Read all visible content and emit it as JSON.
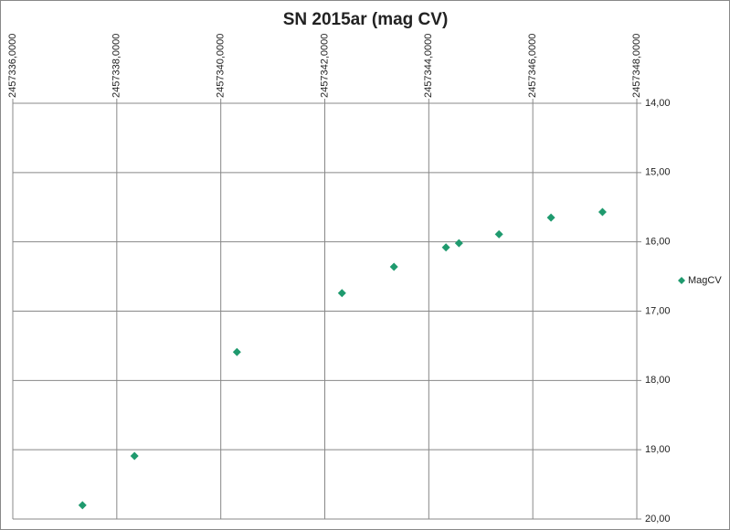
{
  "chart_data": {
    "type": "scatter",
    "title": "SN 2015ar (mag CV)",
    "series": [
      {
        "name": "MagCV",
        "color": "#1f9a6e",
        "x": [
          2457337.34,
          2457338.34,
          2457340.31,
          2457342.33,
          2457343.33,
          2457344.33,
          2457344.58,
          2457345.35,
          2457346.35,
          2457347.34
        ],
        "values": [
          19.8,
          19.09,
          17.59,
          16.74,
          16.36,
          16.08,
          16.02,
          15.89,
          15.65,
          15.57
        ]
      }
    ],
    "xlim": [
      2457336,
      2457348
    ],
    "xticks": [
      {
        "value": 2457336,
        "label": "2457336,0000"
      },
      {
        "value": 2457338,
        "label": "2457338,0000"
      },
      {
        "value": 2457340,
        "label": "2457340,0000"
      },
      {
        "value": 2457342,
        "label": "2457342,0000"
      },
      {
        "value": 2457344,
        "label": "2457344,0000"
      },
      {
        "value": 2457346,
        "label": "2457346,0000"
      },
      {
        "value": 2457348,
        "label": "2457348,0000"
      }
    ],
    "ylim": [
      14,
      20
    ],
    "yticks": [
      {
        "value": 14,
        "label": "14,00"
      },
      {
        "value": 15,
        "label": "15,00"
      },
      {
        "value": 16,
        "label": "16,00"
      },
      {
        "value": 17,
        "label": "17,00"
      },
      {
        "value": 18,
        "label": "18,00"
      },
      {
        "value": 19,
        "label": "19,00"
      },
      {
        "value": 20,
        "label": "20,00"
      }
    ],
    "y_reversed": true,
    "grid": true,
    "legend": "right"
  }
}
